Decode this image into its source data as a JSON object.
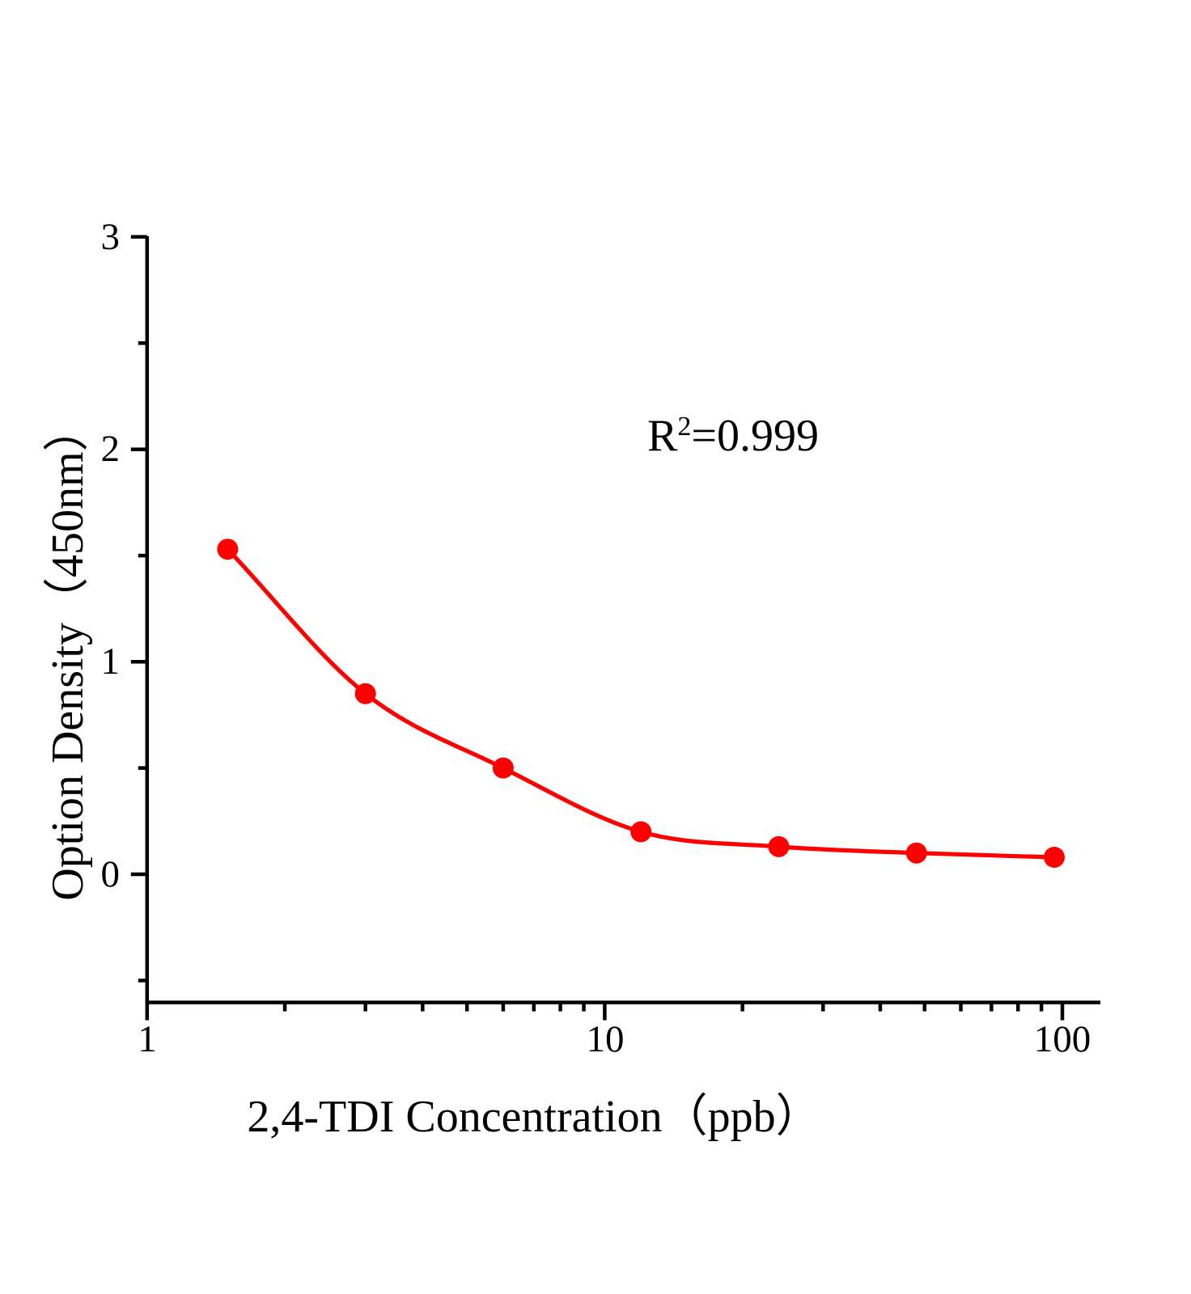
{
  "chart_data": {
    "type": "scatter",
    "title": "",
    "xlabel": "2,4-TDI Concentration（ppb）",
    "ylabel": "Option Density（450nm）",
    "x_scale": "log",
    "xlim": [
      1,
      120
    ],
    "ylim": [
      -0.63,
      3
    ],
    "grid": false,
    "legend": "none",
    "x_ticks_major": [
      1,
      10,
      100
    ],
    "x_tick_labels": [
      "1",
      "10",
      "100"
    ],
    "x_ticks_minor": [
      2,
      3,
      4,
      5,
      6,
      7,
      8,
      9,
      20,
      30,
      40,
      50,
      60,
      70,
      80,
      90
    ],
    "y_ticks_major": [
      3,
      2,
      1,
      0
    ],
    "y_tick_labels": [
      "3",
      "2",
      "1",
      "0"
    ],
    "y_ticks_minor": [
      2.5,
      1.5,
      0.5,
      -0.5
    ],
    "series": [
      {
        "x": [
          1.5,
          3,
          6,
          12,
          24,
          48,
          96
        ],
        "y": [
          1.53,
          0.85,
          0.5,
          0.2,
          0.13,
          0.1,
          0.08
        ]
      }
    ],
    "annotation": {
      "base": "R",
      "sup": "2",
      "rest": "=0.999"
    },
    "colors": {
      "curve": "#ff0000",
      "marker": "#ff0000",
      "axis": "#000000",
      "background": "#ffffff"
    }
  }
}
